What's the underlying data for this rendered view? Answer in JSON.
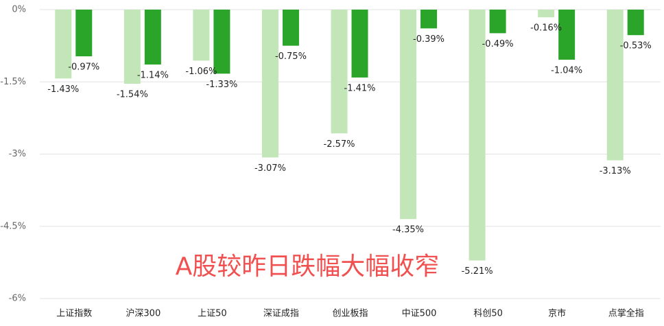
{
  "chart_data": {
    "type": "bar",
    "categories": [
      "上证指数",
      "沪深300",
      "上证50",
      "深证成指",
      "创业板指",
      "中证500",
      "科创50",
      "京市",
      "点掌全指"
    ],
    "series": [
      {
        "color": "#c3e6b9",
        "values": [
          -1.43,
          -1.54,
          -1.06,
          -3.07,
          -2.57,
          -4.35,
          -5.21,
          -0.16,
          -3.13
        ],
        "value_labels": [
          "-1.43%",
          "-1.54%",
          "-1.06%",
          "-3.07%",
          "-2.57%",
          "-4.35%",
          "-5.21%",
          "-0.16%",
          "-3.13%"
        ]
      },
      {
        "color": "#2aa52a",
        "values": [
          -0.97,
          -1.14,
          -1.33,
          -0.75,
          -1.41,
          -0.39,
          -0.49,
          -1.04,
          -0.53
        ],
        "value_labels": [
          "-0.97%",
          "-1.14%",
          "-1.33%",
          "-0.75%",
          "-1.41%",
          "-0.39%",
          "-0.49%",
          "-1.04%",
          "-0.53%"
        ]
      }
    ],
    "ylim": [
      -6,
      0
    ],
    "yticks": [
      {
        "value": 0,
        "label": "0%"
      },
      {
        "value": -1.5,
        "label": "-1.5%"
      },
      {
        "value": -3,
        "label": "-3%"
      },
      {
        "value": -4.5,
        "label": "-4.5%"
      },
      {
        "value": -6,
        "label": "-6%"
      }
    ],
    "grid": true,
    "annotation": "A股较昨日跌幅大幅收窄"
  }
}
